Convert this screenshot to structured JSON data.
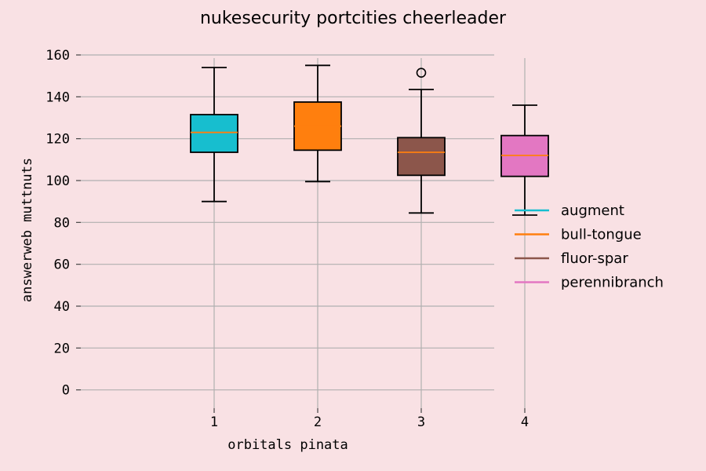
{
  "chart_data": {
    "type": "box",
    "title": "nukesecurity portcities cheerleader",
    "xlabel": "orbitals pinata",
    "ylabel": "answerweb muttnuts",
    "ylim": [
      -5,
      163
    ],
    "yticks": [
      0,
      20,
      40,
      60,
      80,
      100,
      120,
      140,
      160
    ],
    "categories": [
      "1",
      "2",
      "3",
      "4"
    ],
    "grid": true,
    "legend_position": "right",
    "series": [
      {
        "name": "augment",
        "color": "#17becf",
        "whisker_low": 90,
        "q1": 113.5,
        "median": 123,
        "q3": 131.5,
        "whisker_high": 154,
        "outliers": []
      },
      {
        "name": "bull-tongue",
        "color": "#ff7f0e",
        "whisker_low": 99.5,
        "q1": 114.5,
        "median": 126,
        "q3": 137.5,
        "whisker_high": 155,
        "outliers": []
      },
      {
        "name": "fluor-spar",
        "color": "#8c564b",
        "whisker_low": 84.5,
        "q1": 102.5,
        "median": 113.5,
        "q3": 120.5,
        "whisker_high": 143.5,
        "outliers": [
          151.5
        ]
      },
      {
        "name": "perennibranch",
        "color": "#e377c2",
        "whisker_low": 83.5,
        "q1": 102,
        "median": 112,
        "q3": 121.5,
        "whisker_high": 136,
        "outliers": []
      }
    ],
    "median_color": "#ff7f0e"
  }
}
